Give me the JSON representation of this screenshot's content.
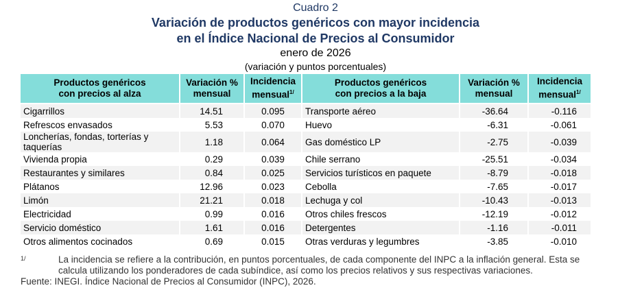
{
  "header": {
    "label": "Cuadro 2",
    "title": [
      "Variación de productos genéricos con mayor incidencia",
      "en el Índice Nacional de Precios al Consumidor"
    ],
    "period": "enero de 2026",
    "units": "(variación y puntos porcentuales)"
  },
  "table": {
    "columns": [
      {
        "lines": [
          "Productos genéricos",
          "con precios al alza"
        ]
      },
      {
        "lines": [
          "Variación %",
          "mensual"
        ]
      },
      {
        "lines": [
          "Incidencia",
          "mensual"
        ],
        "note": "1/"
      },
      {
        "lines": [
          "Productos genéricos",
          "con precios a la baja"
        ]
      },
      {
        "lines": [
          "Variación %",
          "mensual"
        ]
      },
      {
        "lines": [
          "Incidencia",
          "mensual"
        ],
        "note": "1/"
      }
    ],
    "rows": [
      [
        "Cigarrillos",
        "14.51",
        "0.095",
        "Transporte aéreo",
        "-36.64",
        "-0.116"
      ],
      [
        "Refrescos envasados",
        "5.53",
        "0.070",
        "Huevo",
        "-6.31",
        "-0.061"
      ],
      [
        "Loncherías, fondas, torterías y taquerías",
        "1.18",
        "0.064",
        "Gas doméstico LP",
        "-2.75",
        "-0.039"
      ],
      [
        "Vivienda propia",
        "0.29",
        "0.039",
        "Chile serrano",
        "-25.51",
        "-0.034"
      ],
      [
        "Restaurantes y similares",
        "0.84",
        "0.025",
        "Servicios turísticos en paquete",
        "-8.79",
        "-0.018"
      ],
      [
        "Plátanos",
        "12.96",
        "0.023",
        "Cebolla",
        "-7.65",
        "-0.017"
      ],
      [
        "Limón",
        "21.21",
        "0.018",
        "Lechuga y col",
        "-10.43",
        "-0.013"
      ],
      [
        "Electricidad",
        "0.99",
        "0.016",
        "Otros chiles frescos",
        "-12.19",
        "-0.012"
      ],
      [
        "Servicio doméstico",
        "1.61",
        "0.016",
        "Detergentes",
        "-1.16",
        "-0.011"
      ],
      [
        "Otros alimentos cocinados",
        "0.69",
        "0.015",
        "Otras verduras y legumbres",
        "-3.85",
        "-0.010"
      ]
    ]
  },
  "footnote": {
    "marker": "1/",
    "text": "La incidencia se refiere a la contribución, en puntos porcentuales, de cada componente del INPC a la inflación general. Esta se calcula utilizando los ponderadores de cada subíndice, así como los precios relativos y sus respectivas variaciones."
  },
  "source": "Fuente: INEGI. Índice Nacional de Precios al Consumidor (INPC), 2026."
}
